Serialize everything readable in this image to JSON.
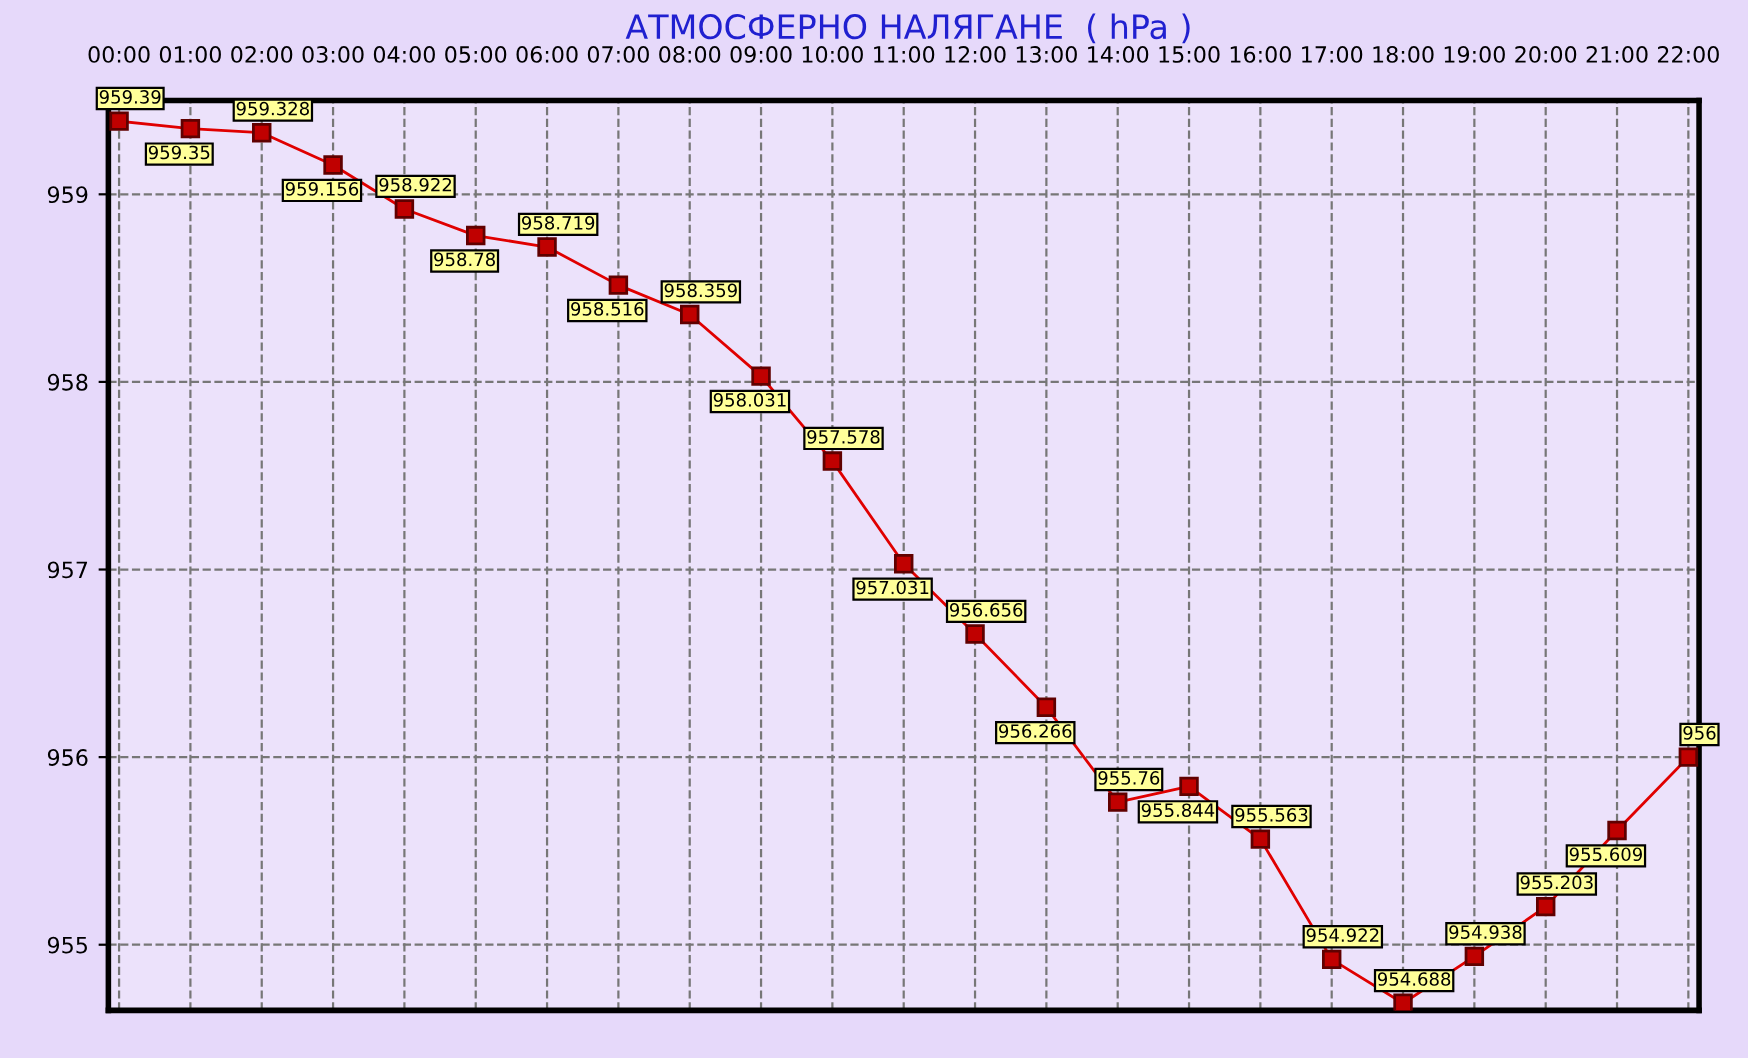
{
  "chart_data": {
    "type": "line",
    "title": "АТМОСФЕРНО НАЛЯГАНЕ  ( hPa )",
    "categories": [
      "00:00",
      "01:00",
      "02:00",
      "03:00",
      "04:00",
      "05:00",
      "06:00",
      "07:00",
      "08:00",
      "09:00",
      "10:00",
      "11:00",
      "12:00",
      "13:00",
      "14:00",
      "15:00",
      "16:00",
      "17:00",
      "18:00",
      "19:00",
      "20:00",
      "21:00",
      "22:00"
    ],
    "series": [
      {
        "color": "#e00000",
        "values": [
          959.39,
          959.35,
          959.328,
          959.156,
          958.922,
          958.78,
          958.719,
          958.516,
          958.359,
          958.031,
          957.578,
          957.031,
          956.656,
          956.266,
          955.76,
          955.844,
          955.563,
          954.922,
          954.688,
          954.938,
          955.203,
          955.609,
          956
        ]
      }
    ],
    "ylim": [
      954.65,
      959.5
    ],
    "yticks": [
      955,
      956,
      957,
      958,
      959
    ],
    "grid": true,
    "marker": "square",
    "line_style": "solid",
    "data_labels": true
  }
}
